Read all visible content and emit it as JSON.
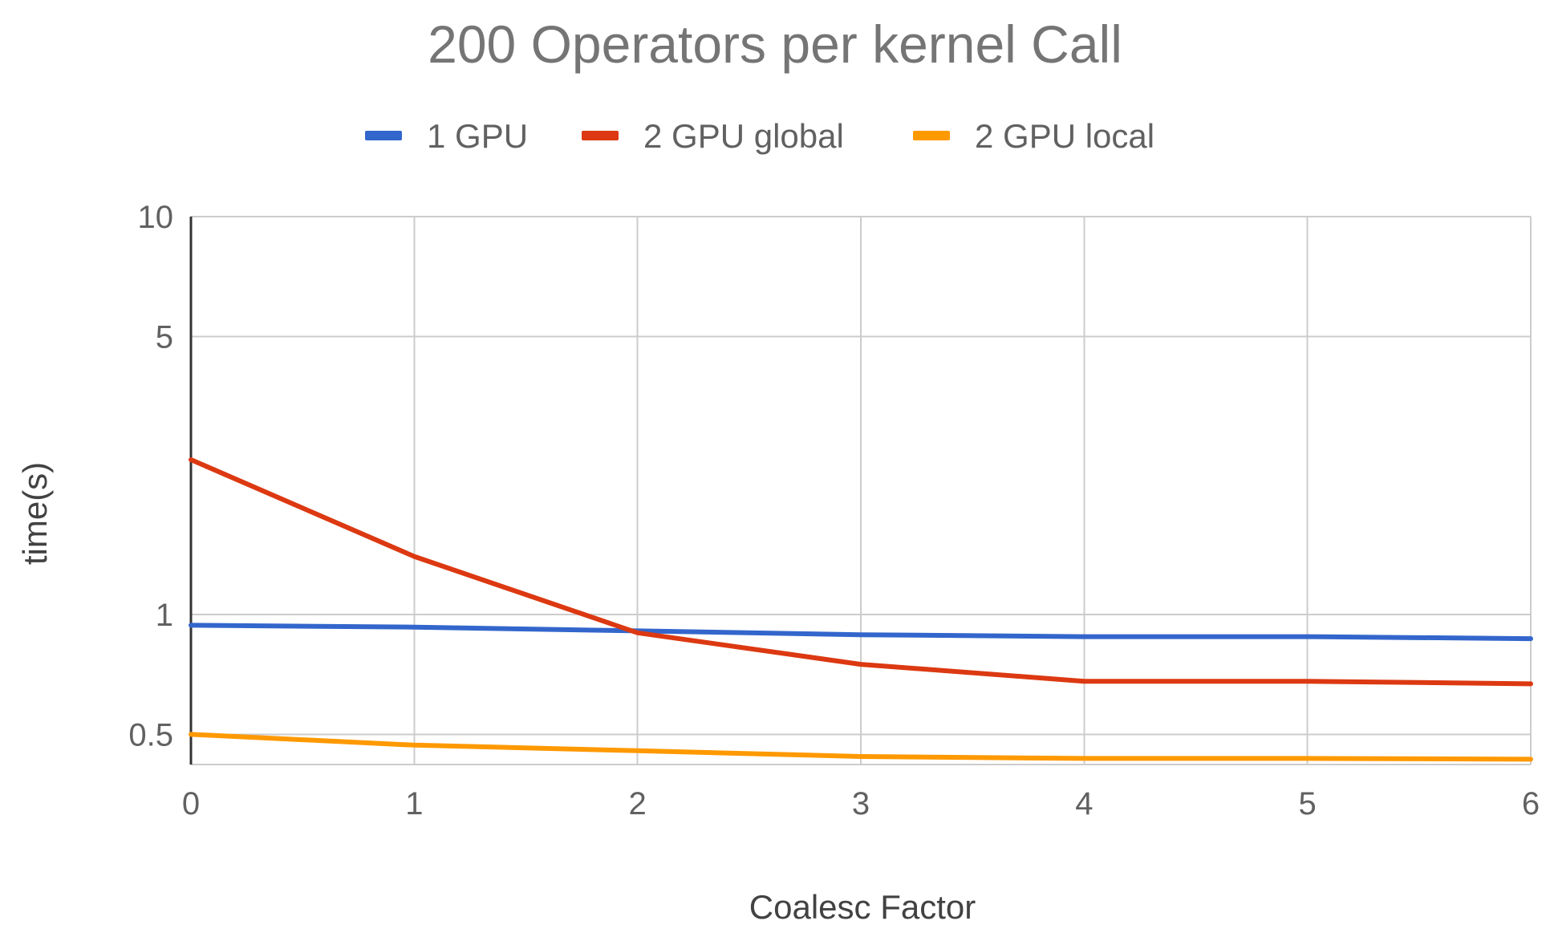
{
  "chart_data": {
    "type": "line",
    "title": "200 Operators per kernel Call",
    "xlabel": "Coalesc Factor",
    "ylabel": "time(s)",
    "yscale": "log",
    "x": [
      0,
      1,
      2,
      3,
      4,
      5,
      6
    ],
    "xticks": [
      "0",
      "1",
      "2",
      "3",
      "4",
      "5",
      "6"
    ],
    "yticks": [
      {
        "value": 0.5,
        "label": "0.5"
      },
      {
        "value": 1,
        "label": "1"
      },
      {
        "value": 5,
        "label": "5"
      },
      {
        "value": 10,
        "label": "10"
      }
    ],
    "ylim": [
      0.42,
      10
    ],
    "xlim": [
      0,
      6
    ],
    "grid": true,
    "legend_position": "top-center",
    "series": [
      {
        "name": "1 GPU",
        "color": "#3366cc",
        "values": [
          0.94,
          0.93,
          0.91,
          0.89,
          0.88,
          0.88,
          0.87
        ]
      },
      {
        "name": "2 GPU global",
        "color": "#dc3912",
        "values": [
          2.45,
          1.4,
          0.9,
          0.75,
          0.68,
          0.68,
          0.67
        ]
      },
      {
        "name": "2 GPU  local",
        "color": "#ff9900",
        "values": [
          0.5,
          0.47,
          0.455,
          0.44,
          0.435,
          0.435,
          0.433
        ]
      }
    ]
  }
}
